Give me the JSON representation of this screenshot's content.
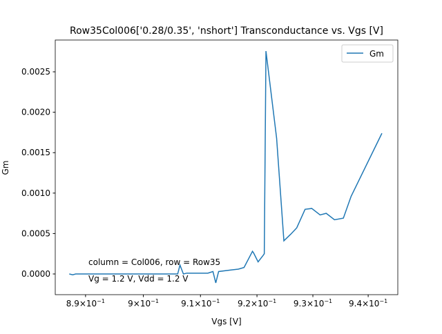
{
  "chart_data": {
    "type": "line",
    "title": "Row35Col006['0.28/0.35', 'nshort'] Transconductance vs. Vgs [V]",
    "x_label": "Vgs [V]",
    "y_label": "Gm",
    "xscale": "log",
    "annotations": [
      "column = Col006, row = Row35",
      "Vg = 1.2 V, Vdd = 1.2 V"
    ],
    "legend_position": "upper right",
    "x": [
      0.8872,
      0.8878,
      0.8883,
      0.899,
      0.906,
      0.9064,
      0.907,
      0.9076,
      0.9113,
      0.9122,
      0.9127,
      0.9132,
      0.9155,
      0.9167,
      0.9177,
      0.9192,
      0.9194,
      0.9202,
      0.9211,
      0.9213,
      0.9216,
      0.9235,
      0.9248,
      0.926,
      0.9271,
      0.9286,
      0.9298,
      0.9313,
      0.9324,
      0.9339,
      0.9355,
      0.9369,
      0.9425
    ],
    "series": [
      {
        "name": "Gm",
        "color": "#1f77b4",
        "values": [
          0,
          -1e-05,
          0,
          0,
          0,
          0.00011,
          0,
          1e-05,
          1e-05,
          3e-05,
          -0.00011,
          3e-05,
          5e-05,
          6e-05,
          8e-05,
          0.00028,
          0.00026,
          0.00015,
          0.00023,
          0.00025,
          0.002756,
          0.00168,
          0.00041,
          0.00049,
          0.00057,
          0.0008,
          0.00081,
          0.00073,
          0.00075,
          0.00067,
          0.00069,
          0.00096,
          0.00174
        ]
      }
    ],
    "xlim": [
      0.8848,
      0.9454
    ],
    "xticks": [
      {
        "value": 0.89,
        "label": "8.9×10",
        "exponent": "−1"
      },
      {
        "value": 0.9,
        "label": "9×10",
        "exponent": "−1"
      },
      {
        "value": 0.91,
        "label": "9.1×10",
        "exponent": "−1"
      },
      {
        "value": 0.92,
        "label": "9.2×10",
        "exponent": "−1"
      },
      {
        "value": 0.93,
        "label": "9.3×10",
        "exponent": "−1"
      },
      {
        "value": 0.94,
        "label": "9.4×10",
        "exponent": "−1"
      }
    ],
    "ylim": [
      -0.000256,
      0.002893
    ],
    "yticks": [
      {
        "value": 0,
        "label": "0.0000"
      },
      {
        "value": 0.0005,
        "label": "0.0005"
      },
      {
        "value": 0.001,
        "label": "0.0010"
      },
      {
        "value": 0.0015,
        "label": "0.0015"
      },
      {
        "value": 0.002,
        "label": "0.0020"
      },
      {
        "value": 0.0025,
        "label": "0.0025"
      }
    ]
  }
}
